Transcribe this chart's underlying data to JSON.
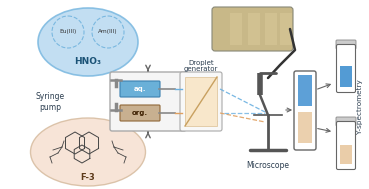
{
  "bg_color": "#ffffff",
  "blue_ell_color": "#b8d9f0",
  "blue_ell_edge": "#7ab8e0",
  "pink_ell_color": "#f5dece",
  "pink_ell_edge": "#d4b89a",
  "eu_label": "Eu(III)",
  "am_label": "Am(III)",
  "hno3_label": "HNO₃",
  "f3_label": "F-3",
  "syringe_label": "Syringe\npump",
  "droplet_label": "Droplet\ngenerator",
  "microscope_label": "Microscope",
  "y_spec_label": "Y-spectrometry",
  "aq_label": "aq.",
  "org_label": "org.",
  "box_bg": "#f5f5f5",
  "box_edge": "#aaaaaa",
  "syringe_aq_color": "#6ab0d8",
  "syringe_aq_edge": "#3a80b0",
  "syringe_org_color": "#c8b090",
  "syringe_org_edge": "#906838",
  "needle_color": "#888888",
  "plunger_color": "#888888",
  "arrow_color": "#666666",
  "blue_line": "#6ab0e0",
  "orange_line": "#e0a060",
  "tube_bg": "#c8a878",
  "tube_dark": "#444444",
  "test_tube_edge": "#666666",
  "blue_fill": "#4090d0",
  "peach_fill": "#e8c8a0",
  "mic_color": "#555555",
  "dg_prism_color": "#f8d8a0",
  "dg_prism_edge": "#c8a060"
}
